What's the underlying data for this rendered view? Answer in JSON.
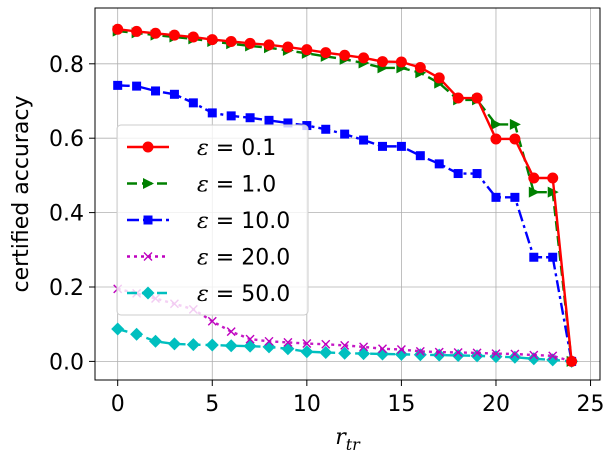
{
  "chart_data": {
    "type": "line",
    "title": "",
    "xlabel": "r_tr",
    "ylabel": "certified accuracy",
    "xlim": [
      -1.2,
      25.5
    ],
    "ylim": [
      -0.05,
      0.95
    ],
    "xticks": [
      0,
      5,
      10,
      15,
      20,
      25
    ],
    "yticks": [
      0.0,
      0.2,
      0.4,
      0.6,
      0.8
    ],
    "xtick_labels": [
      "0",
      "5",
      "10",
      "15",
      "20",
      "25"
    ],
    "ytick_labels": [
      "0.0",
      "0.2",
      "0.4",
      "0.6",
      "0.8"
    ],
    "grid": true,
    "legend_position": "center-left",
    "x": [
      0,
      1,
      2,
      3,
      4,
      5,
      6,
      7,
      8,
      9,
      10,
      11,
      12,
      13,
      14,
      15,
      16,
      17,
      18,
      19,
      20,
      21,
      22,
      23,
      24
    ],
    "series": [
      {
        "name": "ε = 0.1",
        "legend_prefix": "ε",
        "legend_value": "= 0.1",
        "color": "#ff0000",
        "marker": "circle",
        "linestyle": "solid",
        "values": [
          0.893,
          0.887,
          0.882,
          0.877,
          0.872,
          0.865,
          0.86,
          0.855,
          0.851,
          0.845,
          0.838,
          0.83,
          0.823,
          0.816,
          0.806,
          0.805,
          0.79,
          0.762,
          0.708,
          0.708,
          0.598,
          0.598,
          0.493,
          0.493,
          0.0
        ]
      },
      {
        "name": "ε = 1.0",
        "legend_prefix": "ε",
        "legend_value": "= 1.0",
        "color": "#008000",
        "marker": "triangle-right",
        "linestyle": "dashed",
        "values": [
          0.888,
          0.883,
          0.877,
          0.872,
          0.867,
          0.86,
          0.854,
          0.848,
          0.843,
          0.836,
          0.828,
          0.82,
          0.812,
          0.802,
          0.789,
          0.789,
          0.776,
          0.748,
          0.703,
          0.703,
          0.637,
          0.637,
          0.455,
          0.455,
          0.0
        ]
      },
      {
        "name": "ε = 10.0",
        "legend_prefix": "ε",
        "legend_value": "= 10.0",
        "color": "#0000ff",
        "marker": "square",
        "linestyle": "dashdot",
        "values": [
          0.742,
          0.74,
          0.727,
          0.718,
          0.695,
          0.668,
          0.66,
          0.655,
          0.648,
          0.641,
          0.634,
          0.624,
          0.611,
          0.595,
          0.578,
          0.578,
          0.553,
          0.531,
          0.505,
          0.505,
          0.441,
          0.441,
          0.28,
          0.28,
          0.0
        ]
      },
      {
        "name": "ε = 20.0",
        "legend_prefix": "ε",
        "legend_value": "= 20.0",
        "color": "#bf00bf",
        "marker": "x",
        "linestyle": "dotted",
        "values": [
          0.195,
          0.183,
          0.169,
          0.155,
          0.14,
          0.108,
          0.08,
          0.06,
          0.054,
          0.051,
          0.048,
          0.046,
          0.043,
          0.039,
          0.034,
          0.032,
          0.027,
          0.025,
          0.024,
          0.023,
          0.021,
          0.02,
          0.017,
          0.015,
          0.0
        ]
      },
      {
        "name": "ε = 50.0",
        "legend_prefix": "ε",
        "legend_value": "= 50.0",
        "color": "#00bfbf",
        "marker": "diamond",
        "linestyle": "dashed",
        "values": [
          0.087,
          0.073,
          0.054,
          0.047,
          0.045,
          0.044,
          0.042,
          0.041,
          0.039,
          0.034,
          0.026,
          0.024,
          0.022,
          0.021,
          0.02,
          0.019,
          0.018,
          0.017,
          0.016,
          0.015,
          0.013,
          0.011,
          0.007,
          0.004,
          0.0
        ]
      }
    ]
  }
}
